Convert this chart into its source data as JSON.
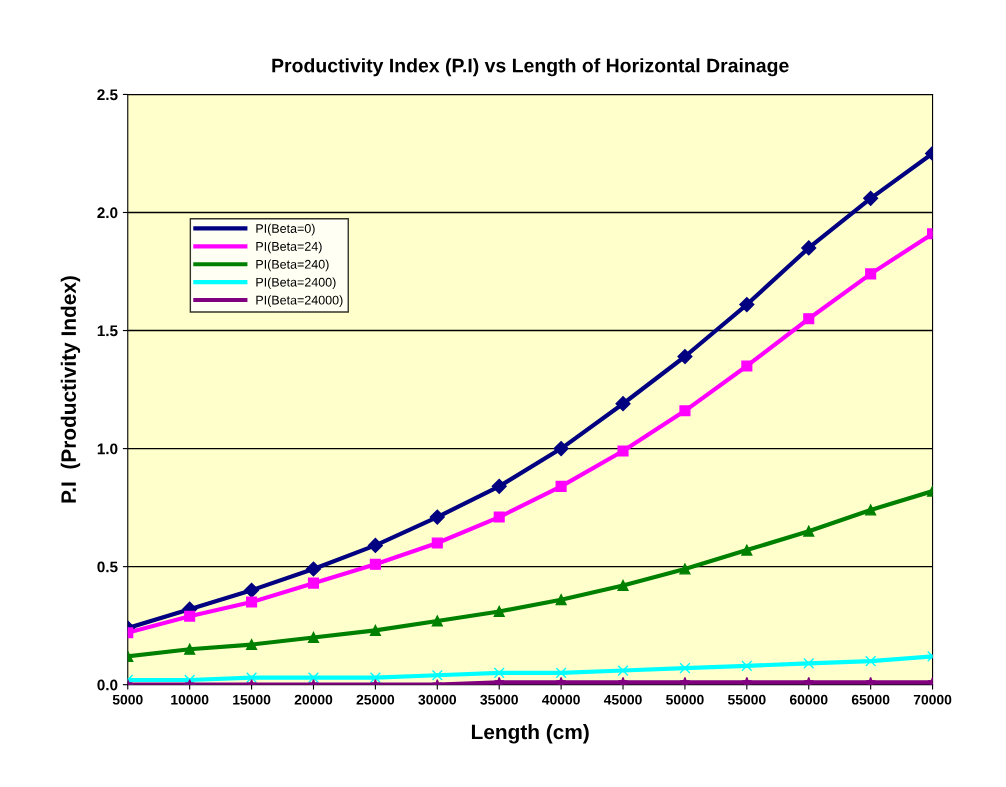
{
  "chart_data": {
    "type": "line",
    "title": "Productivity Index (P.I) vs Length of Horizontal Drainage",
    "xlabel": "Length (cm)",
    "ylabel": "P.I  (Productivity Index)",
    "x": [
      5000,
      10000,
      15000,
      20000,
      25000,
      30000,
      35000,
      40000,
      45000,
      50000,
      55000,
      60000,
      65000,
      70000
    ],
    "xlim": [
      5000,
      70000
    ],
    "xticks": [
      5000,
      10000,
      15000,
      20000,
      25000,
      30000,
      35000,
      40000,
      45000,
      50000,
      55000,
      60000,
      65000,
      70000
    ],
    "ylim": [
      0,
      2.5
    ],
    "yticks": [
      {
        "value": 0,
        "label": "0.0"
      },
      0.5,
      {
        "value": 1,
        "label": "1.0"
      },
      1.5,
      {
        "value": 2,
        "label": "2.0"
      },
      2.5
    ],
    "grid": "y",
    "legend": "top left",
    "line_style": "solid",
    "series": [
      {
        "name": "PI(Beta=0)",
        "color": "#000080",
        "marker": "diamond",
        "values": [
          0.24,
          0.32,
          0.4,
          0.49,
          0.59,
          0.71,
          0.84,
          1.0,
          1.19,
          1.39,
          1.61,
          1.85,
          2.06,
          2.25
        ]
      },
      {
        "name": "PI(Beta=24)",
        "color": "#ff00ff",
        "marker": "square",
        "values": [
          0.22,
          0.29,
          0.35,
          0.43,
          0.51,
          0.6,
          0.71,
          0.84,
          0.99,
          1.16,
          1.35,
          1.55,
          1.74,
          1.91
        ]
      },
      {
        "name": "PI(Beta=240)",
        "color": "#008000",
        "marker": "triangle",
        "values": [
          0.12,
          0.15,
          0.17,
          0.2,
          0.23,
          0.27,
          0.31,
          0.36,
          0.42,
          0.49,
          0.57,
          0.65,
          0.74,
          0.82
        ]
      },
      {
        "name": "PI(Beta=2400)",
        "color": "#00ffff",
        "marker": "cross",
        "values": [
          0.02,
          0.02,
          0.03,
          0.03,
          0.03,
          0.04,
          0.05,
          0.05,
          0.06,
          0.07,
          0.08,
          0.09,
          0.1,
          0.12
        ]
      },
      {
        "name": "PI(Beta=24000)",
        "color": "#800080",
        "marker": "star",
        "values": [
          0.0,
          0.0,
          0.0,
          0.0,
          0.0,
          0.0,
          0.01,
          0.01,
          0.01,
          0.01,
          0.01,
          0.01,
          0.01,
          0.01
        ]
      }
    ]
  }
}
